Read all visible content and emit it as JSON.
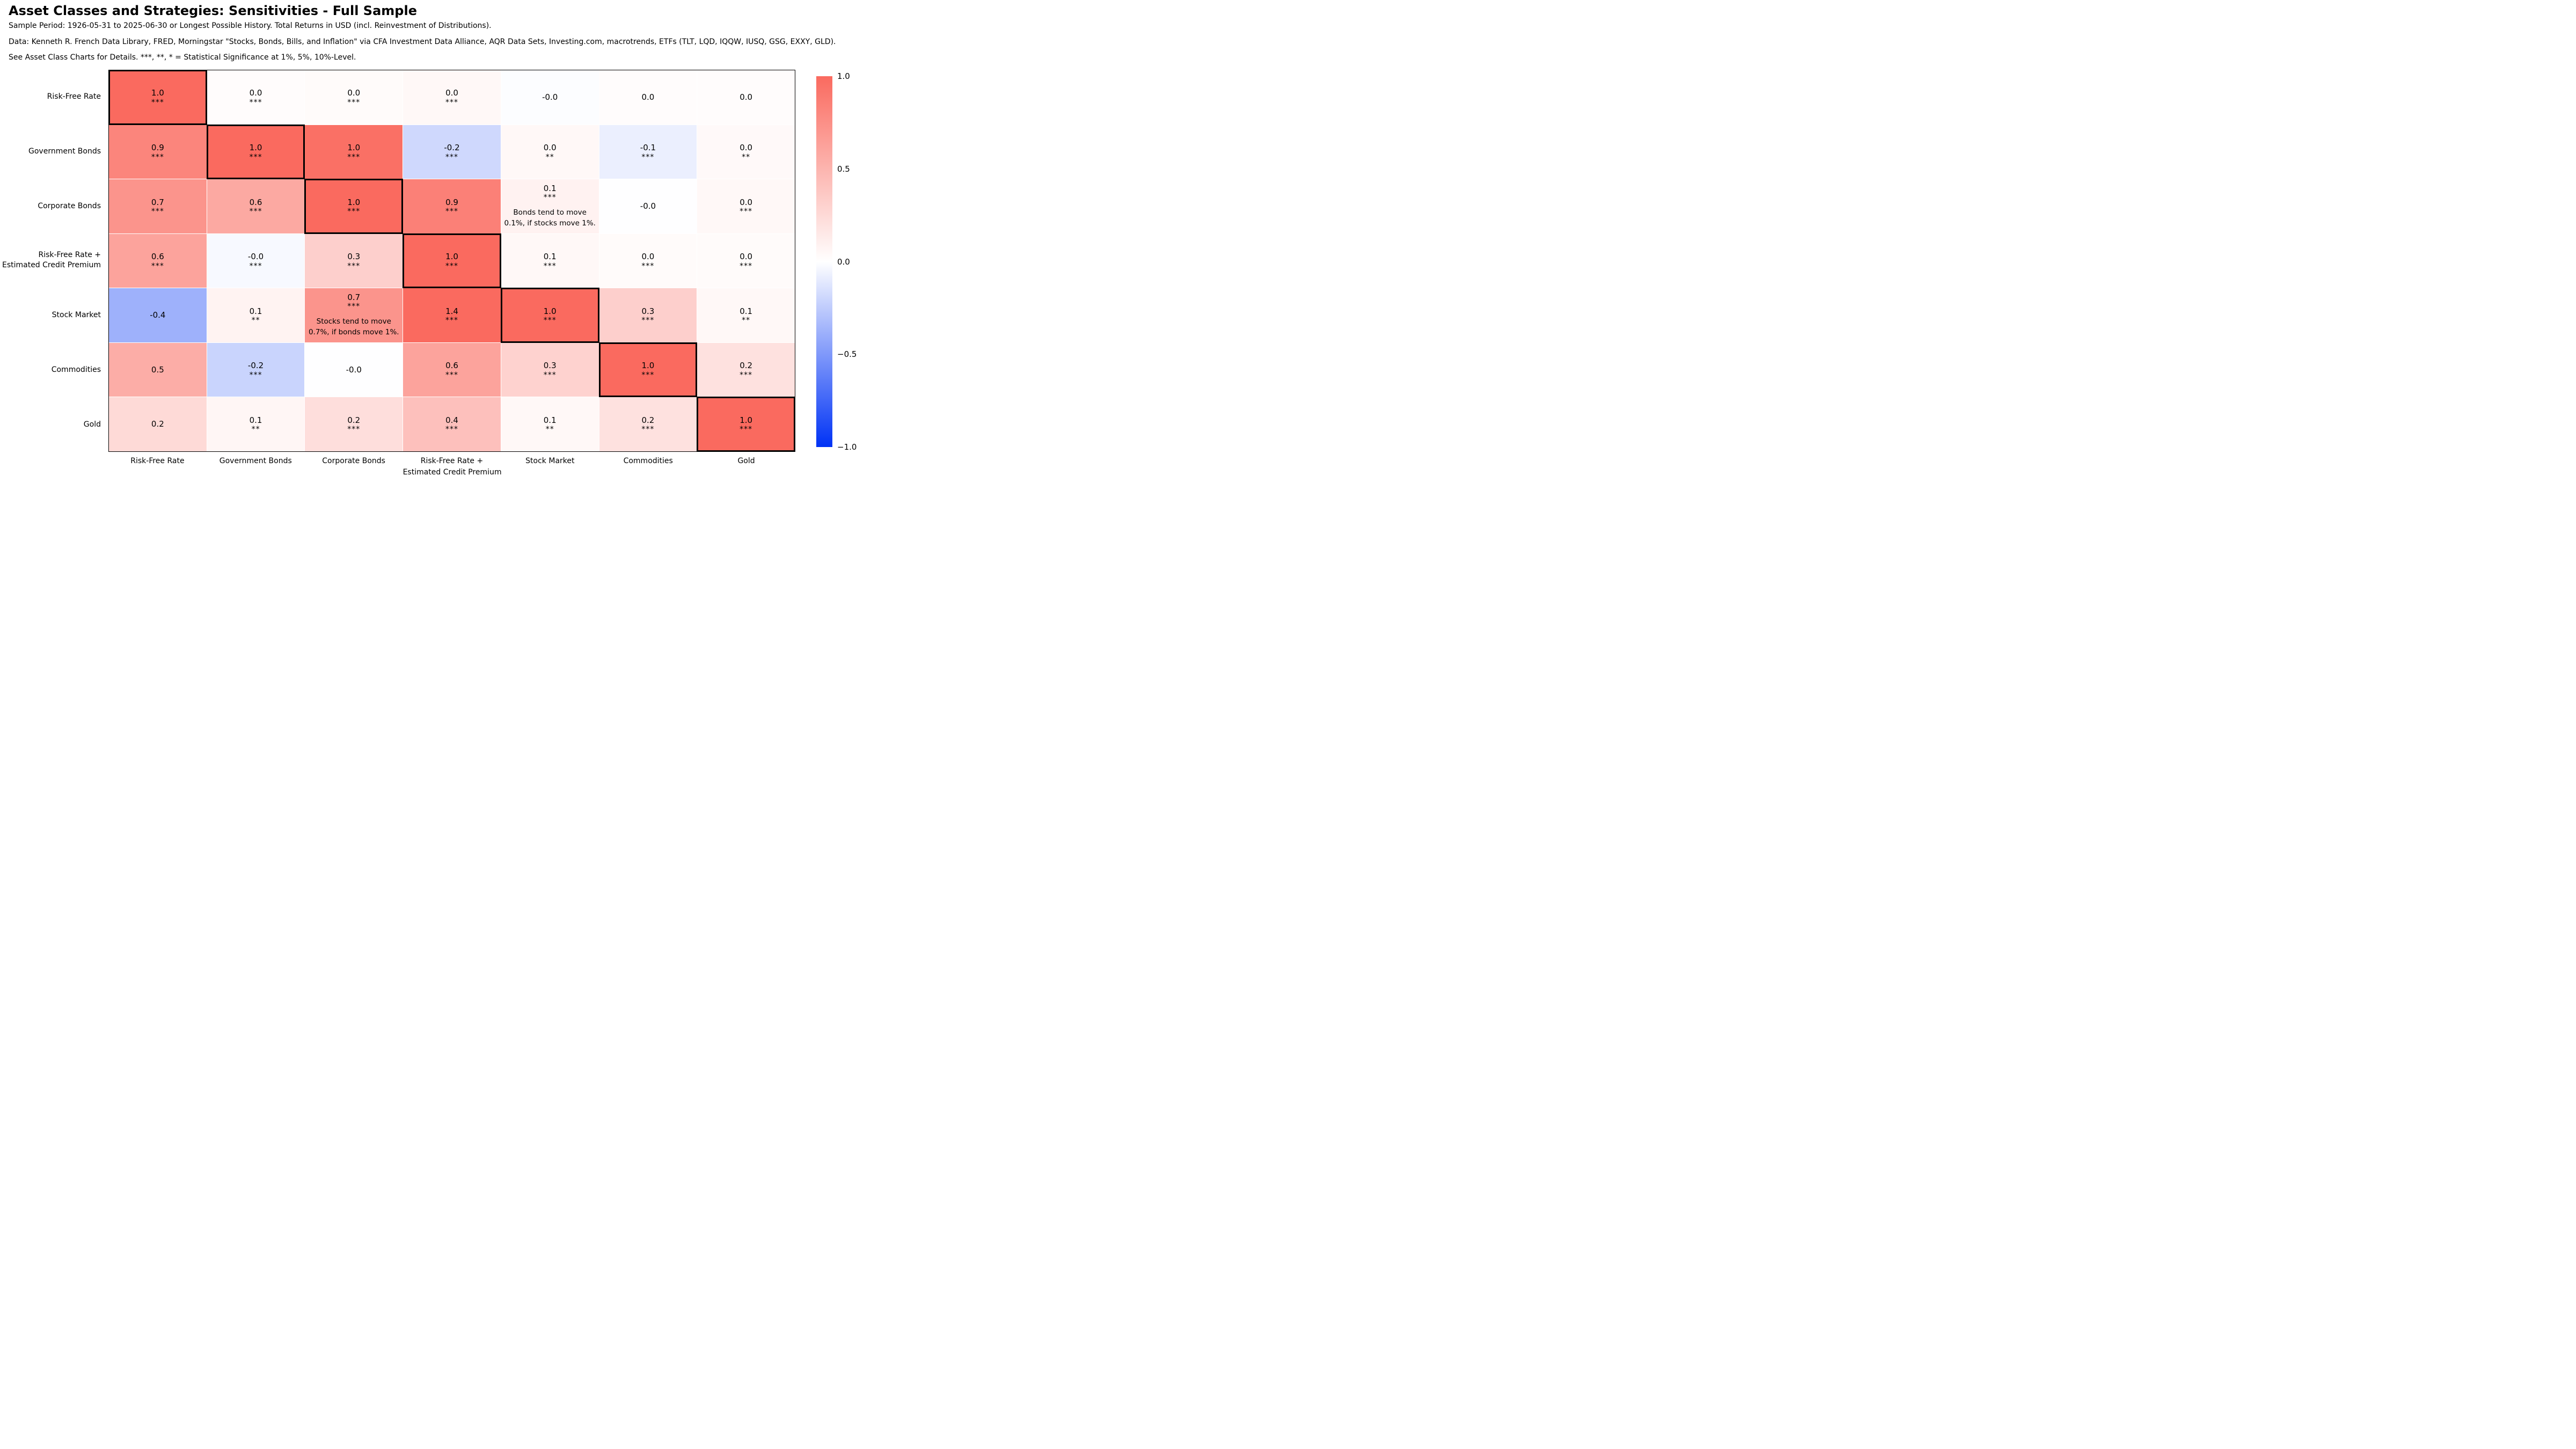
{
  "header": {
    "title": "Asset Classes and Strategies: Sensitivities - Full Sample",
    "subtitle_sample_period": "Sample Period: 1926-05-31 to 2025-06-30 or Longest Possible History. Total Returns in USD (incl. Reinvestment of Distributions).",
    "subtitle_data_sources": "Data: Kenneth R. French Data Library, FRED, Morningstar \"Stocks, Bonds, Bills, and Inflation\" via CFA Investment Data Alliance, AQR Data Sets, Investing.com, macrotrends, ETFs (TLT, LQD, IQQW, IUSQ, GSG, EXXY, GLD).",
    "subtitle_significance": "See Asset Class Charts for Details. ***, **, * = Statistical Significance at 1%, 5%, 10%-Level."
  },
  "chart_data": {
    "type": "heatmap",
    "title": "Asset Classes and Strategies: Sensitivities - Full Sample",
    "row_labels": [
      [
        "Risk-Free Rate"
      ],
      [
        "Government Bonds"
      ],
      [
        "Corporate Bonds"
      ],
      [
        "Risk-Free Rate +",
        "Estimated Credit Premium"
      ],
      [
        "Stock Market"
      ],
      [
        "Commodities"
      ],
      [
        "Gold"
      ]
    ],
    "col_labels": [
      [
        "Risk-Free Rate"
      ],
      [
        "Government Bonds"
      ],
      [
        "Corporate Bonds"
      ],
      [
        "Risk-Free Rate +",
        "Estimated Credit Premium"
      ],
      [
        "Stock Market"
      ],
      [
        "Commodities"
      ],
      [
        "Gold"
      ]
    ],
    "legend_position": "right",
    "colorbar_ticks": [
      "1.0",
      "0.5",
      "0.0",
      "−0.5",
      "−1.0"
    ],
    "colorbar_range": [
      -1.0,
      1.0
    ],
    "colormap": {
      "positive_end": "#FA6A5F",
      "zero": "#FFFFFF",
      "negative_end": "#0032F5"
    },
    "cells": [
      [
        {
          "value": "1.0",
          "stars": "***",
          "shade": 1.0,
          "diagonal": true
        },
        {
          "value": "0.0",
          "stars": "***",
          "shade": 0.02
        },
        {
          "value": "0.0",
          "stars": "***",
          "shade": 0.03
        },
        {
          "value": "0.0",
          "stars": "***",
          "shade": 0.05
        },
        {
          "value": "-0.0",
          "stars": "",
          "shade": -0.01
        },
        {
          "value": "0.0",
          "stars": "",
          "shade": 0.02
        },
        {
          "value": "0.0",
          "stars": "",
          "shade": 0.02
        }
      ],
      [
        {
          "value": "0.9",
          "stars": "***",
          "shade": 0.82
        },
        {
          "value": "1.0",
          "stars": "***",
          "shade": 1.0,
          "diagonal": true
        },
        {
          "value": "1.0",
          "stars": "***",
          "shade": 0.96
        },
        {
          "value": "-0.2",
          "stars": "***",
          "shade": -0.19
        },
        {
          "value": "0.0",
          "stars": "**",
          "shade": 0.05
        },
        {
          "value": "-0.1",
          "stars": "***",
          "shade": -0.08
        },
        {
          "value": "0.0",
          "stars": "**",
          "shade": 0.04
        }
      ],
      [
        {
          "value": "0.7",
          "stars": "***",
          "shade": 0.72
        },
        {
          "value": "0.6",
          "stars": "***",
          "shade": 0.58
        },
        {
          "value": "1.0",
          "stars": "***",
          "shade": 1.0,
          "diagonal": true
        },
        {
          "value": "0.9",
          "stars": "***",
          "shade": 0.85
        },
        {
          "value": "0.1",
          "stars": "***",
          "shade": 0.09,
          "note": [
            "Bonds tend to move",
            "0.1%, if stocks move 1%."
          ]
        },
        {
          "value": "-0.0",
          "stars": "",
          "shade": -0.005
        },
        {
          "value": "0.0",
          "stars": "***",
          "shade": 0.05
        }
      ],
      [
        {
          "value": "0.6",
          "stars": "***",
          "shade": 0.62
        },
        {
          "value": "-0.0",
          "stars": "***",
          "shade": -0.03
        },
        {
          "value": "0.3",
          "stars": "***",
          "shade": 0.32
        },
        {
          "value": "1.0",
          "stars": "***",
          "shade": 1.0,
          "diagonal": true
        },
        {
          "value": "0.1",
          "stars": "***",
          "shade": 0.05
        },
        {
          "value": "0.0",
          "stars": "***",
          "shade": 0.03
        },
        {
          "value": "0.0",
          "stars": "***",
          "shade": 0.03
        }
      ],
      [
        {
          "value": "-0.4",
          "stars": "",
          "shade": -0.38
        },
        {
          "value": "0.1",
          "stars": "**",
          "shade": 0.08
        },
        {
          "value": "0.7",
          "stars": "***",
          "shade": 0.72,
          "note": [
            "Stocks tend to move",
            "0.7%, if bonds move 1%."
          ]
        },
        {
          "value": "1.4",
          "stars": "***",
          "shade": 1.0
        },
        {
          "value": "1.0",
          "stars": "***",
          "shade": 1.0,
          "diagonal": true
        },
        {
          "value": "0.3",
          "stars": "***",
          "shade": 0.32
        },
        {
          "value": "0.1",
          "stars": "**",
          "shade": 0.05
        }
      ],
      [
        {
          "value": "0.5",
          "stars": "",
          "shade": 0.55
        },
        {
          "value": "-0.2",
          "stars": "***",
          "shade": -0.21
        },
        {
          "value": "-0.0",
          "stars": "",
          "shade": -0.005
        },
        {
          "value": "0.6",
          "stars": "***",
          "shade": 0.62
        },
        {
          "value": "0.3",
          "stars": "***",
          "shade": 0.3
        },
        {
          "value": "1.0",
          "stars": "***",
          "shade": 1.0,
          "diagonal": true
        },
        {
          "value": "0.2",
          "stars": "***",
          "shade": 0.2
        }
      ],
      [
        {
          "value": "0.2",
          "stars": "",
          "shade": 0.25
        },
        {
          "value": "0.1",
          "stars": "**",
          "shade": 0.06
        },
        {
          "value": "0.2",
          "stars": "***",
          "shade": 0.22
        },
        {
          "value": "0.4",
          "stars": "***",
          "shade": 0.42
        },
        {
          "value": "0.1",
          "stars": "**",
          "shade": 0.05
        },
        {
          "value": "0.2",
          "stars": "***",
          "shade": 0.2
        },
        {
          "value": "1.0",
          "stars": "***",
          "shade": 1.0,
          "diagonal": true
        }
      ]
    ]
  }
}
